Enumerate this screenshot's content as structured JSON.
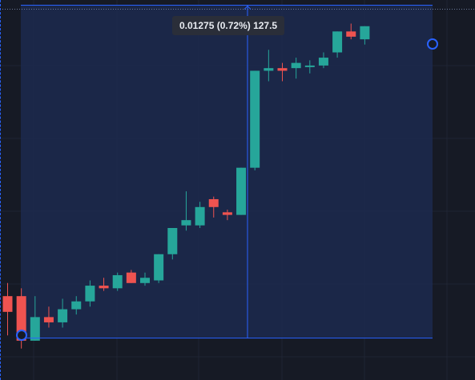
{
  "measure": {
    "readout": "0.01275 (0.72%) 127.5",
    "change": 0.01275,
    "change_percent": 0.72,
    "bars": 127.5
  },
  "colors": {
    "background": "#161a25",
    "grid": "#1f2433",
    "up": "#26a69a",
    "down": "#ef5350",
    "measure_fill": "#1c2a4f",
    "measure_line": "#2962ff",
    "label_bg": "#2a2e39",
    "label_text": "#e9ecf2"
  },
  "chart_data": {
    "type": "candlestick",
    "series": [
      {
        "open": 1.7717,
        "high": 1.7722,
        "low": 1.7702,
        "close": 1.7711
      },
      {
        "open": 1.7717,
        "high": 1.772,
        "low": 1.7697,
        "close": 1.77
      },
      {
        "open": 1.77,
        "high": 1.7717,
        "low": 1.77,
        "close": 1.7709
      },
      {
        "open": 1.7709,
        "high": 1.7713,
        "low": 1.7705,
        "close": 1.7707
      },
      {
        "open": 1.7707,
        "high": 1.7716,
        "low": 1.7705,
        "close": 1.7712
      },
      {
        "open": 1.7712,
        "high": 1.7717,
        "low": 1.771,
        "close": 1.7715
      },
      {
        "open": 1.7715,
        "high": 1.7723,
        "low": 1.7713,
        "close": 1.7721
      },
      {
        "open": 1.7721,
        "high": 1.7724,
        "low": 1.7719,
        "close": 1.772
      },
      {
        "open": 1.772,
        "high": 1.7726,
        "low": 1.7719,
        "close": 1.7725
      },
      {
        "open": 1.7726,
        "high": 1.7727,
        "low": 1.7722,
        "close": 1.7722
      },
      {
        "open": 1.7722,
        "high": 1.7726,
        "low": 1.7721,
        "close": 1.7724
      },
      {
        "open": 1.7723,
        "high": 1.7733,
        "low": 1.7722,
        "close": 1.7733
      },
      {
        "open": 1.7733,
        "high": 1.7743,
        "low": 1.7731,
        "close": 1.7743
      },
      {
        "open": 1.7744,
        "high": 1.7757,
        "low": 1.7742,
        "close": 1.7746
      },
      {
        "open": 1.7744,
        "high": 1.7753,
        "low": 1.7743,
        "close": 1.7751
      },
      {
        "open": 1.7754,
        "high": 1.7755,
        "low": 1.7747,
        "close": 1.7751
      },
      {
        "open": 1.7749,
        "high": 1.775,
        "low": 1.7746,
        "close": 1.7748
      },
      {
        "open": 1.7748,
        "high": 1.7766,
        "low": 1.7748,
        "close": 1.7766
      },
      {
        "open": 1.7766,
        "high": 1.7803,
        "low": 1.7765,
        "close": 1.7803
      },
      {
        "open": 1.7803,
        "high": 1.7811,
        "low": 1.7799,
        "close": 1.7804
      },
      {
        "open": 1.7804,
        "high": 1.7806,
        "low": 1.7799,
        "close": 1.7803
      },
      {
        "open": 1.7804,
        "high": 1.7808,
        "low": 1.78,
        "close": 1.7806
      },
      {
        "open": 1.7805,
        "high": 1.7807,
        "low": 1.7802,
        "close": 1.7805
      },
      {
        "open": 1.7805,
        "high": 1.781,
        "low": 1.7804,
        "close": 1.7808
      },
      {
        "open": 1.781,
        "high": 1.7818,
        "low": 1.7808,
        "close": 1.7818
      },
      {
        "open": 1.7818,
        "high": 1.7821,
        "low": 1.7815,
        "close": 1.7816
      },
      {
        "open": 1.7815,
        "high": 1.782,
        "low": 1.7813,
        "close": 1.782
      }
    ],
    "measure_range": {
      "low": 1.7701,
      "high": 1.7828
    },
    "ylim": [
      1.7685,
      1.783
    ],
    "grid": true
  }
}
